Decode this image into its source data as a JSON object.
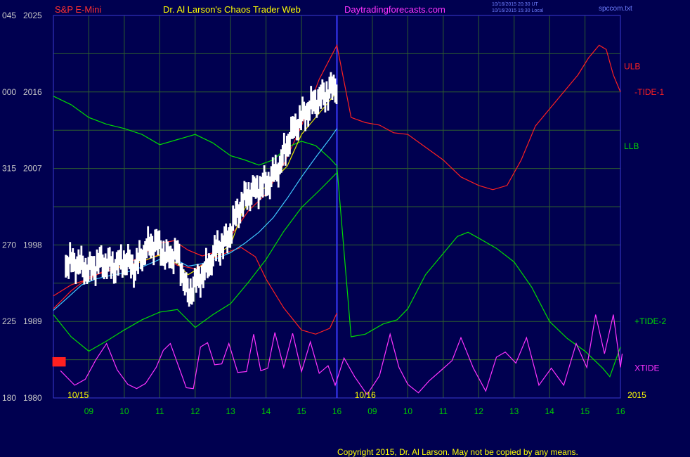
{
  "header": {
    "left_title": "S&P E-Mini",
    "center_title": "Dr. Al Larson's Chaos Trader Web",
    "site": "Daytradingforecasts.com",
    "stamp_line1": "10/16/2015 20:30 UT",
    "stamp_line2": "10/16/2015 15:30 Local",
    "file": "spccom.txt"
  },
  "footer": {
    "copyright": "Copyright 2015, Dr. Al Larson. May not be copied by any means."
  },
  "colors": {
    "background": "#000050",
    "grid": "#2e5e2e",
    "now_line": "#3a3aff",
    "axis_text": "#c8c8c8",
    "x_tick": "#00cc00",
    "date_label": "#ffff00",
    "title_red": "#ff3030",
    "title_yellow": "#ffff00",
    "title_magenta": "#ff33ff",
    "copyright": "#ffff00"
  },
  "chart_data": {
    "type": "line",
    "price_scale": {
      "min": 1980,
      "max": 2025
    },
    "y_ticks": [
      {
        "left": "180",
        "right": "1980",
        "value": 1980
      },
      {
        "left": "225",
        "right": "1989",
        "value": 1989
      },
      {
        "left": "270",
        "right": "1998",
        "value": 1998
      },
      {
        "left": "315",
        "right": "2007",
        "value": 2007
      },
      {
        "left": "000",
        "right": "2016",
        "value": 2016
      },
      {
        "left": "045",
        "right": "2025",
        "value": 2025
      }
    ],
    "hour_range": [
      8,
      24
    ],
    "x_ticks": [
      {
        "label": "09",
        "hour": 9
      },
      {
        "label": "10",
        "hour": 10
      },
      {
        "label": "11",
        "hour": 11
      },
      {
        "label": "12",
        "hour": 12
      },
      {
        "label": "13",
        "hour": 13
      },
      {
        "label": "14",
        "hour": 14
      },
      {
        "label": "15",
        "hour": 15
      },
      {
        "label": "16",
        "hour": 16
      },
      {
        "label": "09",
        "hour": 17
      },
      {
        "label": "10",
        "hour": 18
      },
      {
        "label": "11",
        "hour": 19
      },
      {
        "label": "12",
        "hour": 20
      },
      {
        "label": "13",
        "hour": 21
      },
      {
        "label": "14",
        "hour": 22
      },
      {
        "label": "15",
        "hour": 23
      },
      {
        "label": "16",
        "hour": 24
      }
    ],
    "now_hour": 16,
    "date_labels": [
      {
        "text": "10/15",
        "hour": 8.4
      },
      {
        "text": "10/16",
        "hour": 16.5
      },
      {
        "text": "2015",
        "hour": 24.2
      }
    ],
    "series": [
      {
        "name": "ULB",
        "color": "#ff2020",
        "points": [
          [
            8,
            1990.5
          ],
          [
            8.5,
            1992.6
          ],
          [
            9,
            1994.2
          ],
          [
            9.5,
            1994.9
          ],
          [
            10,
            1995.5
          ],
          [
            10.5,
            1996.8
          ],
          [
            11,
            1998.2
          ],
          [
            11.4,
            1998.5
          ],
          [
            11.8,
            1997.4
          ],
          [
            12.2,
            1996.7
          ],
          [
            12.6,
            1997.2
          ],
          [
            13,
            1999
          ],
          [
            13.5,
            2002
          ],
          [
            14,
            2004
          ],
          [
            14.5,
            2007.5
          ],
          [
            15,
            2012
          ],
          [
            15.5,
            2017.5
          ],
          [
            16,
            2021.5
          ],
          [
            16.4,
            2013
          ],
          [
            16.8,
            2012.4
          ],
          [
            17.2,
            2012.1
          ],
          [
            17.6,
            2011.2
          ],
          [
            18,
            2011
          ],
          [
            18.5,
            2009.5
          ],
          [
            19,
            2008
          ],
          [
            19.5,
            2006
          ],
          [
            20,
            2005
          ],
          [
            20.4,
            2004.5
          ],
          [
            20.8,
            2005
          ],
          [
            21.2,
            2008
          ],
          [
            21.6,
            2012
          ],
          [
            22,
            2014
          ],
          [
            22.4,
            2016
          ],
          [
            22.8,
            2018
          ],
          [
            23.1,
            2020
          ],
          [
            23.4,
            2021.5
          ],
          [
            23.6,
            2021
          ],
          [
            23.8,
            2018
          ],
          [
            24,
            2016
          ]
        ],
        "label": {
          "text": "ULB",
          "hour": 24.1,
          "value": 2019
        }
      },
      {
        "name": "LLB",
        "color": "#00dd00",
        "points": [
          [
            8,
            2015.5
          ],
          [
            8.5,
            2014.5
          ],
          [
            9,
            2013
          ],
          [
            9.5,
            2012.2
          ],
          [
            10,
            2011.7
          ],
          [
            10.5,
            2011
          ],
          [
            11,
            2009.8
          ],
          [
            11.5,
            2010.4
          ],
          [
            12,
            2011
          ],
          [
            12.5,
            2010
          ],
          [
            13,
            2008.5
          ],
          [
            13.4,
            2008
          ],
          [
            13.8,
            2007.4
          ],
          [
            14.2,
            2008
          ],
          [
            14.6,
            2009.5
          ],
          [
            15,
            2010.2
          ],
          [
            15.4,
            2009.7
          ],
          [
            15.8,
            2008.2
          ],
          [
            16,
            2007.3
          ],
          [
            16.4,
            1987.2
          ],
          [
            16.8,
            1987.5
          ],
          [
            17.3,
            1988.7
          ],
          [
            17.7,
            1989.2
          ],
          [
            18,
            1990.5
          ],
          [
            18.5,
            1994.5
          ],
          [
            19,
            1997
          ],
          [
            19.4,
            1999
          ],
          [
            19.7,
            1999.5
          ],
          [
            20,
            1998.8
          ],
          [
            20.5,
            1997.6
          ],
          [
            21,
            1996
          ],
          [
            21.5,
            1993
          ],
          [
            22,
            1989
          ],
          [
            22.5,
            1987
          ],
          [
            23,
            1985.5
          ],
          [
            23.5,
            1983.5
          ],
          [
            23.7,
            1982.5
          ],
          [
            24,
            1986
          ]
        ],
        "label": {
          "text": "LLB",
          "hour": 24.1,
          "value": 2009.6
        }
      },
      {
        "name": "-TIDE-1",
        "color": "#ff2020",
        "points": [
          [
            8,
            1992
          ],
          [
            8.5,
            1993.3
          ],
          [
            9,
            1994
          ],
          [
            9.5,
            1995.1
          ],
          [
            10,
            1995.6
          ],
          [
            10.5,
            1996
          ],
          [
            11,
            1996.9
          ],
          [
            11.5,
            1995.6
          ],
          [
            12,
            1995.2
          ],
          [
            12.5,
            1996.4
          ],
          [
            13,
            1997.3
          ],
          [
            13.3,
            1997.7
          ],
          [
            13.7,
            1996.6
          ],
          [
            14,
            1994
          ],
          [
            14.5,
            1990.6
          ],
          [
            15,
            1988
          ],
          [
            15.4,
            1987.5
          ],
          [
            15.8,
            1988.2
          ],
          [
            16,
            1990
          ]
        ],
        "label": {
          "text": "-TIDE-1",
          "hour": 24.4,
          "value": 2016
        }
      },
      {
        "name": "+TIDE-2",
        "color": "#00dd00",
        "points": [
          [
            8,
            1989.8
          ],
          [
            8.5,
            1987.2
          ],
          [
            9,
            1985.5
          ],
          [
            9.5,
            1986.7
          ],
          [
            10,
            1988
          ],
          [
            10.5,
            1989.2
          ],
          [
            11,
            1990.1
          ],
          [
            11.5,
            1990.4
          ],
          [
            12,
            1988.3
          ],
          [
            12.5,
            1989.8
          ],
          [
            13,
            1991.1
          ],
          [
            13.5,
            1993.6
          ],
          [
            14,
            1996.3
          ],
          [
            14.5,
            1999.6
          ],
          [
            15,
            2002.4
          ],
          [
            15.5,
            2004.4
          ],
          [
            16,
            2006.5
          ]
        ],
        "label": {
          "text": "+TIDE-2",
          "hour": 24.4,
          "value": 1989
        }
      },
      {
        "name": "ma-yellow",
        "color": "#e6e600",
        "points": [
          [
            9,
            1995.2
          ],
          [
            9.5,
            1995.7
          ],
          [
            10,
            1995.3
          ],
          [
            10.5,
            1996.1
          ],
          [
            11,
            1996.8
          ],
          [
            11.5,
            1995.8
          ],
          [
            11.8,
            1994.5
          ],
          [
            12,
            1995
          ],
          [
            12.5,
            1996.5
          ],
          [
            13,
            1998
          ],
          [
            13.3,
            2001.5
          ],
          [
            13.6,
            2003.8
          ],
          [
            14,
            2004.8
          ],
          [
            14.3,
            2006
          ],
          [
            14.6,
            2007.3
          ],
          [
            15,
            2011
          ],
          [
            15.3,
            2012.5
          ],
          [
            15.6,
            2014
          ],
          [
            16,
            2016
          ]
        ]
      },
      {
        "name": "ma-cyan",
        "color": "#40c8ff",
        "points": [
          [
            8,
            1990.3
          ],
          [
            8.4,
            1991.8
          ],
          [
            8.8,
            1993.3
          ],
          [
            9.2,
            1994
          ],
          [
            9.6,
            1994.4
          ],
          [
            10,
            1994.7
          ],
          [
            10.5,
            1995.4
          ],
          [
            11,
            1996.3
          ],
          [
            11.4,
            1996.4
          ],
          [
            11.8,
            1995.5
          ],
          [
            12.2,
            1995.8
          ],
          [
            12.6,
            1996.4
          ],
          [
            13,
            1997.1
          ],
          [
            13.4,
            1998.2
          ],
          [
            13.8,
            1999.5
          ],
          [
            14.2,
            2001.2
          ],
          [
            14.6,
            2003.5
          ],
          [
            15,
            2006
          ],
          [
            15.4,
            2008.3
          ],
          [
            15.8,
            2010.5
          ],
          [
            16,
            2011.7
          ]
        ]
      },
      {
        "name": "XTIDE",
        "color": "#ff33ff",
        "points": [
          [
            8.2,
            1983.2
          ],
          [
            8.6,
            1981.5
          ],
          [
            8.9,
            1982.2
          ],
          [
            9.2,
            1984.5
          ],
          [
            9.5,
            1986.4
          ],
          [
            9.8,
            1983.3
          ],
          [
            10.1,
            1981.6
          ],
          [
            10.35,
            1981.1
          ],
          [
            10.6,
            1981.7
          ],
          [
            10.9,
            1983.6
          ],
          [
            11.1,
            1985.6
          ],
          [
            11.3,
            1986.4
          ],
          [
            11.5,
            1984.1
          ],
          [
            11.75,
            1981.2
          ],
          [
            11.95,
            1981.1
          ],
          [
            12.15,
            1986
          ],
          [
            12.35,
            1986.5
          ],
          [
            12.55,
            1983.9
          ],
          [
            12.75,
            1984
          ],
          [
            12.95,
            1986.4
          ],
          [
            13.2,
            1983
          ],
          [
            13.45,
            1983.1
          ],
          [
            13.65,
            1987.5
          ],
          [
            13.85,
            1983.2
          ],
          [
            14.05,
            1983.5
          ],
          [
            14.25,
            1987.7
          ],
          [
            14.5,
            1983.6
          ],
          [
            14.75,
            1987.6
          ],
          [
            15,
            1983.1
          ],
          [
            15.25,
            1986.6
          ],
          [
            15.5,
            1982.9
          ],
          [
            15.75,
            1983.8
          ],
          [
            15.95,
            1981.5
          ],
          [
            16.2,
            1984.7
          ],
          [
            16.5,
            1982.5
          ],
          [
            16.85,
            1980.4
          ],
          [
            17.2,
            1982.6
          ],
          [
            17.5,
            1987.5
          ],
          [
            17.75,
            1983.6
          ],
          [
            18,
            1981.6
          ],
          [
            18.3,
            1980.6
          ],
          [
            18.6,
            1982
          ],
          [
            18.9,
            1983.1
          ],
          [
            19.25,
            1984.4
          ],
          [
            19.5,
            1987.1
          ],
          [
            19.85,
            1983.5
          ],
          [
            20.2,
            1980.8
          ],
          [
            20.5,
            1984.8
          ],
          [
            20.75,
            1985.4
          ],
          [
            21.05,
            1984.1
          ],
          [
            21.35,
            1987.1
          ],
          [
            21.7,
            1981.5
          ],
          [
            22.05,
            1983.5
          ],
          [
            22.4,
            1981.5
          ],
          [
            22.75,
            1986.4
          ],
          [
            23.05,
            1983.6
          ],
          [
            23.3,
            1989.8
          ],
          [
            23.55,
            1985.2
          ],
          [
            23.8,
            1989.8
          ],
          [
            24,
            1983.6
          ],
          [
            24.05,
            1985.2
          ]
        ],
        "label": {
          "text": "XTIDE",
          "hour": 24.4,
          "value": 1983.5
        }
      }
    ],
    "price_path": [
      [
        8,
        1984
      ],
      [
        8.3,
        1984.2
      ],
      [
        8.35,
        1995.8
      ],
      [
        8.6,
        1996
      ],
      [
        9,
        1995
      ],
      [
        9.3,
        1996
      ],
      [
        9.7,
        1995.5
      ],
      [
        10,
        1996.2
      ],
      [
        10.3,
        1995.3
      ],
      [
        10.6,
        1997.5
      ],
      [
        10.9,
        1998.3
      ],
      [
        11.2,
        1996.5
      ],
      [
        11.5,
        1997
      ],
      [
        11.8,
        1992
      ],
      [
        12,
        1993.5
      ],
      [
        12.3,
        1995
      ],
      [
        12.6,
        1997.5
      ],
      [
        12.9,
        1998.5
      ],
      [
        13.2,
        2002
      ],
      [
        13.5,
        2004
      ],
      [
        13.8,
        2004.7
      ],
      [
        14.1,
        2005.5
      ],
      [
        14.4,
        2007.5
      ],
      [
        14.7,
        2011
      ],
      [
        15,
        2013
      ],
      [
        15.3,
        2014.5
      ],
      [
        15.6,
        2015.5
      ],
      [
        15.9,
        2016.5
      ],
      [
        16,
        2016.6
      ]
    ],
    "price_spread": 1.5
  }
}
